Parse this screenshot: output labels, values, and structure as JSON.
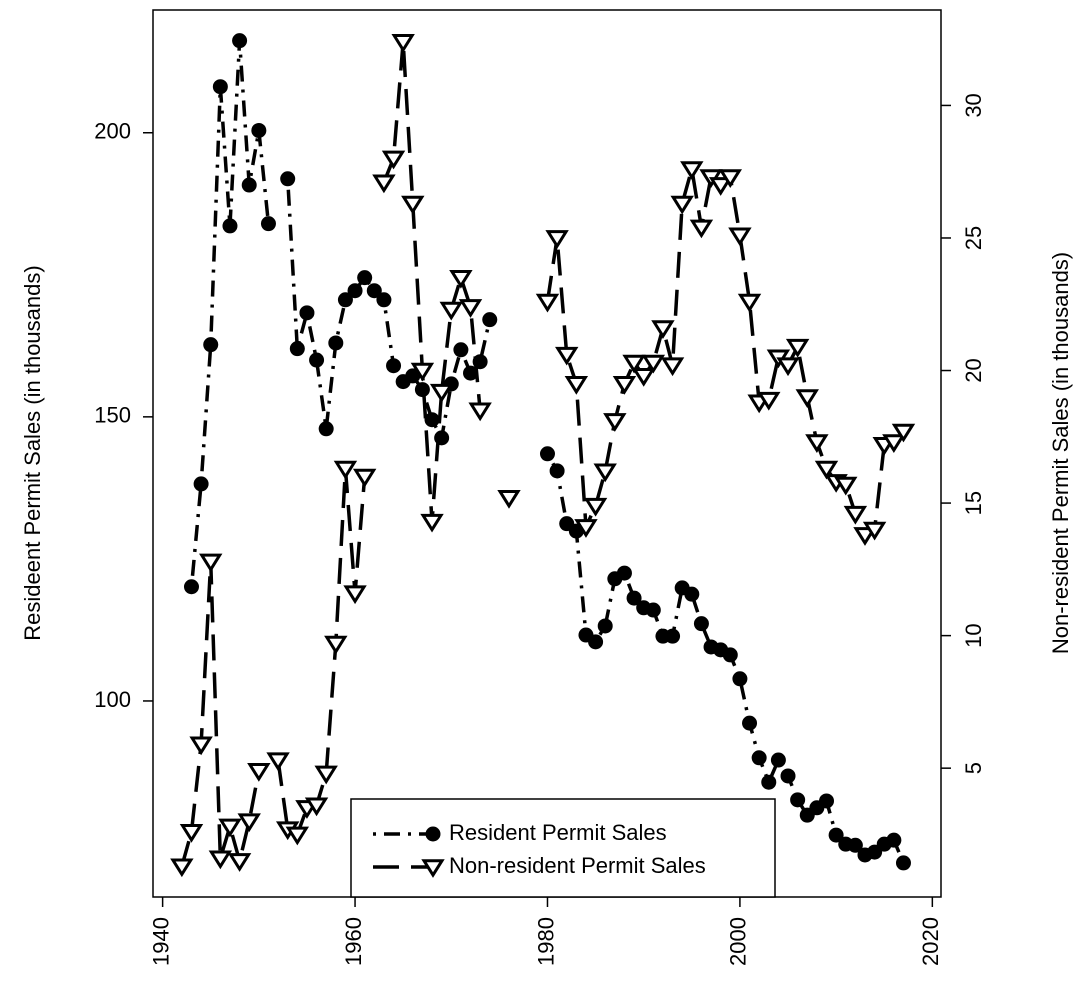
{
  "chart_data": {
    "type": "line",
    "x": [
      1942,
      1943,
      1944,
      1945,
      1946,
      1947,
      1948,
      1949,
      1950,
      1951,
      1952,
      1953,
      1954,
      1955,
      1956,
      1957,
      1958,
      1959,
      1960,
      1961,
      1962,
      1963,
      1964,
      1965,
      1966,
      1967,
      1968,
      1969,
      1970,
      1971,
      1972,
      1973,
      1974,
      1975,
      1976,
      1977,
      1978,
      1979,
      1980,
      1981,
      1982,
      1983,
      1984,
      1985,
      1986,
      1987,
      1988,
      1989,
      1990,
      1991,
      1992,
      1993,
      1994,
      1995,
      1996,
      1997,
      1998,
      1999,
      2000,
      2001,
      2002,
      2003,
      2004,
      2005,
      2006,
      2007,
      2008,
      2009,
      2010,
      2011,
      2012,
      2013,
      2014,
      2015,
      2016,
      2017
    ],
    "series": [
      {
        "name": "Resident Permit Sales",
        "color": "#000000",
        "marker": "circle",
        "line_style": "dotdash",
        "axis": "y",
        "values": [
          null,
          120.1,
          138.2,
          162.7,
          208.1,
          183.6,
          216.2,
          190.8,
          200.4,
          184.0,
          null,
          191.9,
          162.0,
          168.3,
          160.0,
          147.9,
          163.0,
          170.6,
          172.2,
          174.5,
          172.2,
          170.6,
          159.0,
          156.2,
          157.2,
          154.8,
          149.5,
          146.3,
          155.8,
          161.8,
          157.7,
          159.7,
          167.1,
          null,
          null,
          null,
          null,
          null,
          143.5,
          140.5,
          131.2,
          129.9,
          111.6,
          110.4,
          113.2,
          121.5,
          122.5,
          118.1,
          116.4,
          116.0,
          111.4,
          111.4,
          119.9,
          118.8,
          113.6,
          109.5,
          109.0,
          108.1,
          103.9,
          96.1,
          90.0,
          85.7,
          89.6,
          86.8,
          82.6,
          79.9,
          81.2,
          82.4,
          76.4,
          74.8,
          74.6,
          72.9,
          73.4,
          74.8,
          75.5,
          71.5
        ]
      },
      {
        "name": "Non-resident Permit Sales",
        "color": "#000000",
        "marker": "triangle-down",
        "line_style": "longdash",
        "axis": "y2",
        "values": [
          1.3,
          2.6,
          5.9,
          12.8,
          1.6,
          2.8,
          1.5,
          3.0,
          4.9,
          null,
          5.3,
          2.7,
          2.5,
          3.5,
          3.6,
          4.8,
          9.7,
          16.3,
          11.6,
          16.0,
          null,
          27.1,
          28.0,
          32.4,
          26.3,
          20.0,
          14.3,
          19.2,
          22.3,
          23.5,
          22.4,
          18.5,
          null,
          null,
          15.2,
          null,
          null,
          null,
          22.6,
          25.0,
          20.6,
          19.5,
          14.1,
          14.9,
          16.2,
          18.1,
          19.5,
          20.3,
          19.8,
          20.3,
          21.6,
          20.2,
          26.3,
          27.6,
          25.4,
          27.3,
          27.0,
          27.3,
          25.1,
          22.6,
          18.8,
          18.9,
          20.5,
          20.2,
          20.9,
          19.0,
          17.3,
          16.3,
          15.8,
          15.7,
          14.6,
          13.8,
          14.0,
          17.2,
          17.3,
          17.7
        ]
      }
    ],
    "y_label": "Resideent Permit Sales (in thousands)",
    "y2_label": "Non-resident Permit Sales (in thousands)",
    "xlim": [
      1939,
      2020.9
    ],
    "xticks": [
      1940,
      1960,
      1980,
      2000,
      2020
    ],
    "ylim": [
      65.5,
      221.6
    ],
    "yticks": [
      100,
      150,
      200
    ],
    "y2lim": [
      0.14,
      33.6
    ],
    "y2ticks": [
      5,
      10,
      15,
      20,
      25,
      30
    ],
    "legend": "bottom"
  }
}
